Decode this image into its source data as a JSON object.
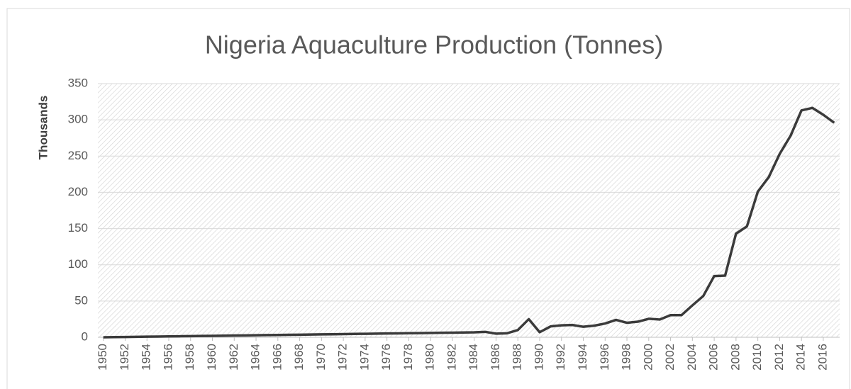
{
  "chart_data": {
    "type": "line",
    "title": "Nigeria Aquaculture Production (Tonnes)",
    "y_label": "Thousands",
    "x": [
      1950,
      1951,
      1952,
      1953,
      1954,
      1955,
      1956,
      1957,
      1958,
      1959,
      1960,
      1961,
      1962,
      1963,
      1964,
      1965,
      1966,
      1967,
      1968,
      1969,
      1970,
      1971,
      1972,
      1973,
      1974,
      1975,
      1976,
      1977,
      1978,
      1979,
      1980,
      1981,
      1982,
      1983,
      1984,
      1985,
      1986,
      1987,
      1988,
      1989,
      1990,
      1991,
      1992,
      1993,
      1994,
      1995,
      1996,
      1997,
      1998,
      1999,
      2000,
      2001,
      2002,
      2003,
      2004,
      2005,
      2006,
      2007,
      2008,
      2009,
      2010,
      2011,
      2012,
      2013,
      2014,
      2015,
      2016,
      2017
    ],
    "values": [
      0,
      0.2,
      0.4,
      0.6,
      0.8,
      1,
      1.2,
      1.4,
      1.6,
      1.8,
      2,
      2.2,
      2.4,
      2.6,
      2.8,
      3,
      3.2,
      3.4,
      3.6,
      3.8,
      4,
      4.2,
      4.4,
      4.6,
      4.8,
      5,
      5.2,
      5.4,
      5.6,
      5.8,
      6,
      6.2,
      6.4,
      6.6,
      6.8,
      7.5,
      5,
      5.5,
      10,
      25,
      7,
      15,
      16.5,
      17,
      14.5,
      16,
      19,
      24,
      20,
      21.5,
      25.5,
      24.5,
      30.5,
      30.5,
      44,
      57,
      84.5,
      85,
      143,
      153,
      201,
      221,
      253,
      278,
      313,
      316.5,
      307,
      296
    ],
    "color": "#3a3a3a",
    "xlim": [
      1949.5,
      2017.5
    ],
    "xticks": [
      1950,
      1952,
      1954,
      1956,
      1958,
      1960,
      1962,
      1964,
      1966,
      1968,
      1970,
      1972,
      1974,
      1976,
      1978,
      1980,
      1982,
      1984,
      1986,
      1988,
      1990,
      1992,
      1994,
      1996,
      1998,
      2000,
      2002,
      2004,
      2006,
      2008,
      2010,
      2012,
      2014,
      2016
    ],
    "ylim": [
      0,
      350
    ],
    "yticks": [
      0,
      50,
      100,
      150,
      200,
      250,
      300,
      350
    ],
    "grid": true
  }
}
